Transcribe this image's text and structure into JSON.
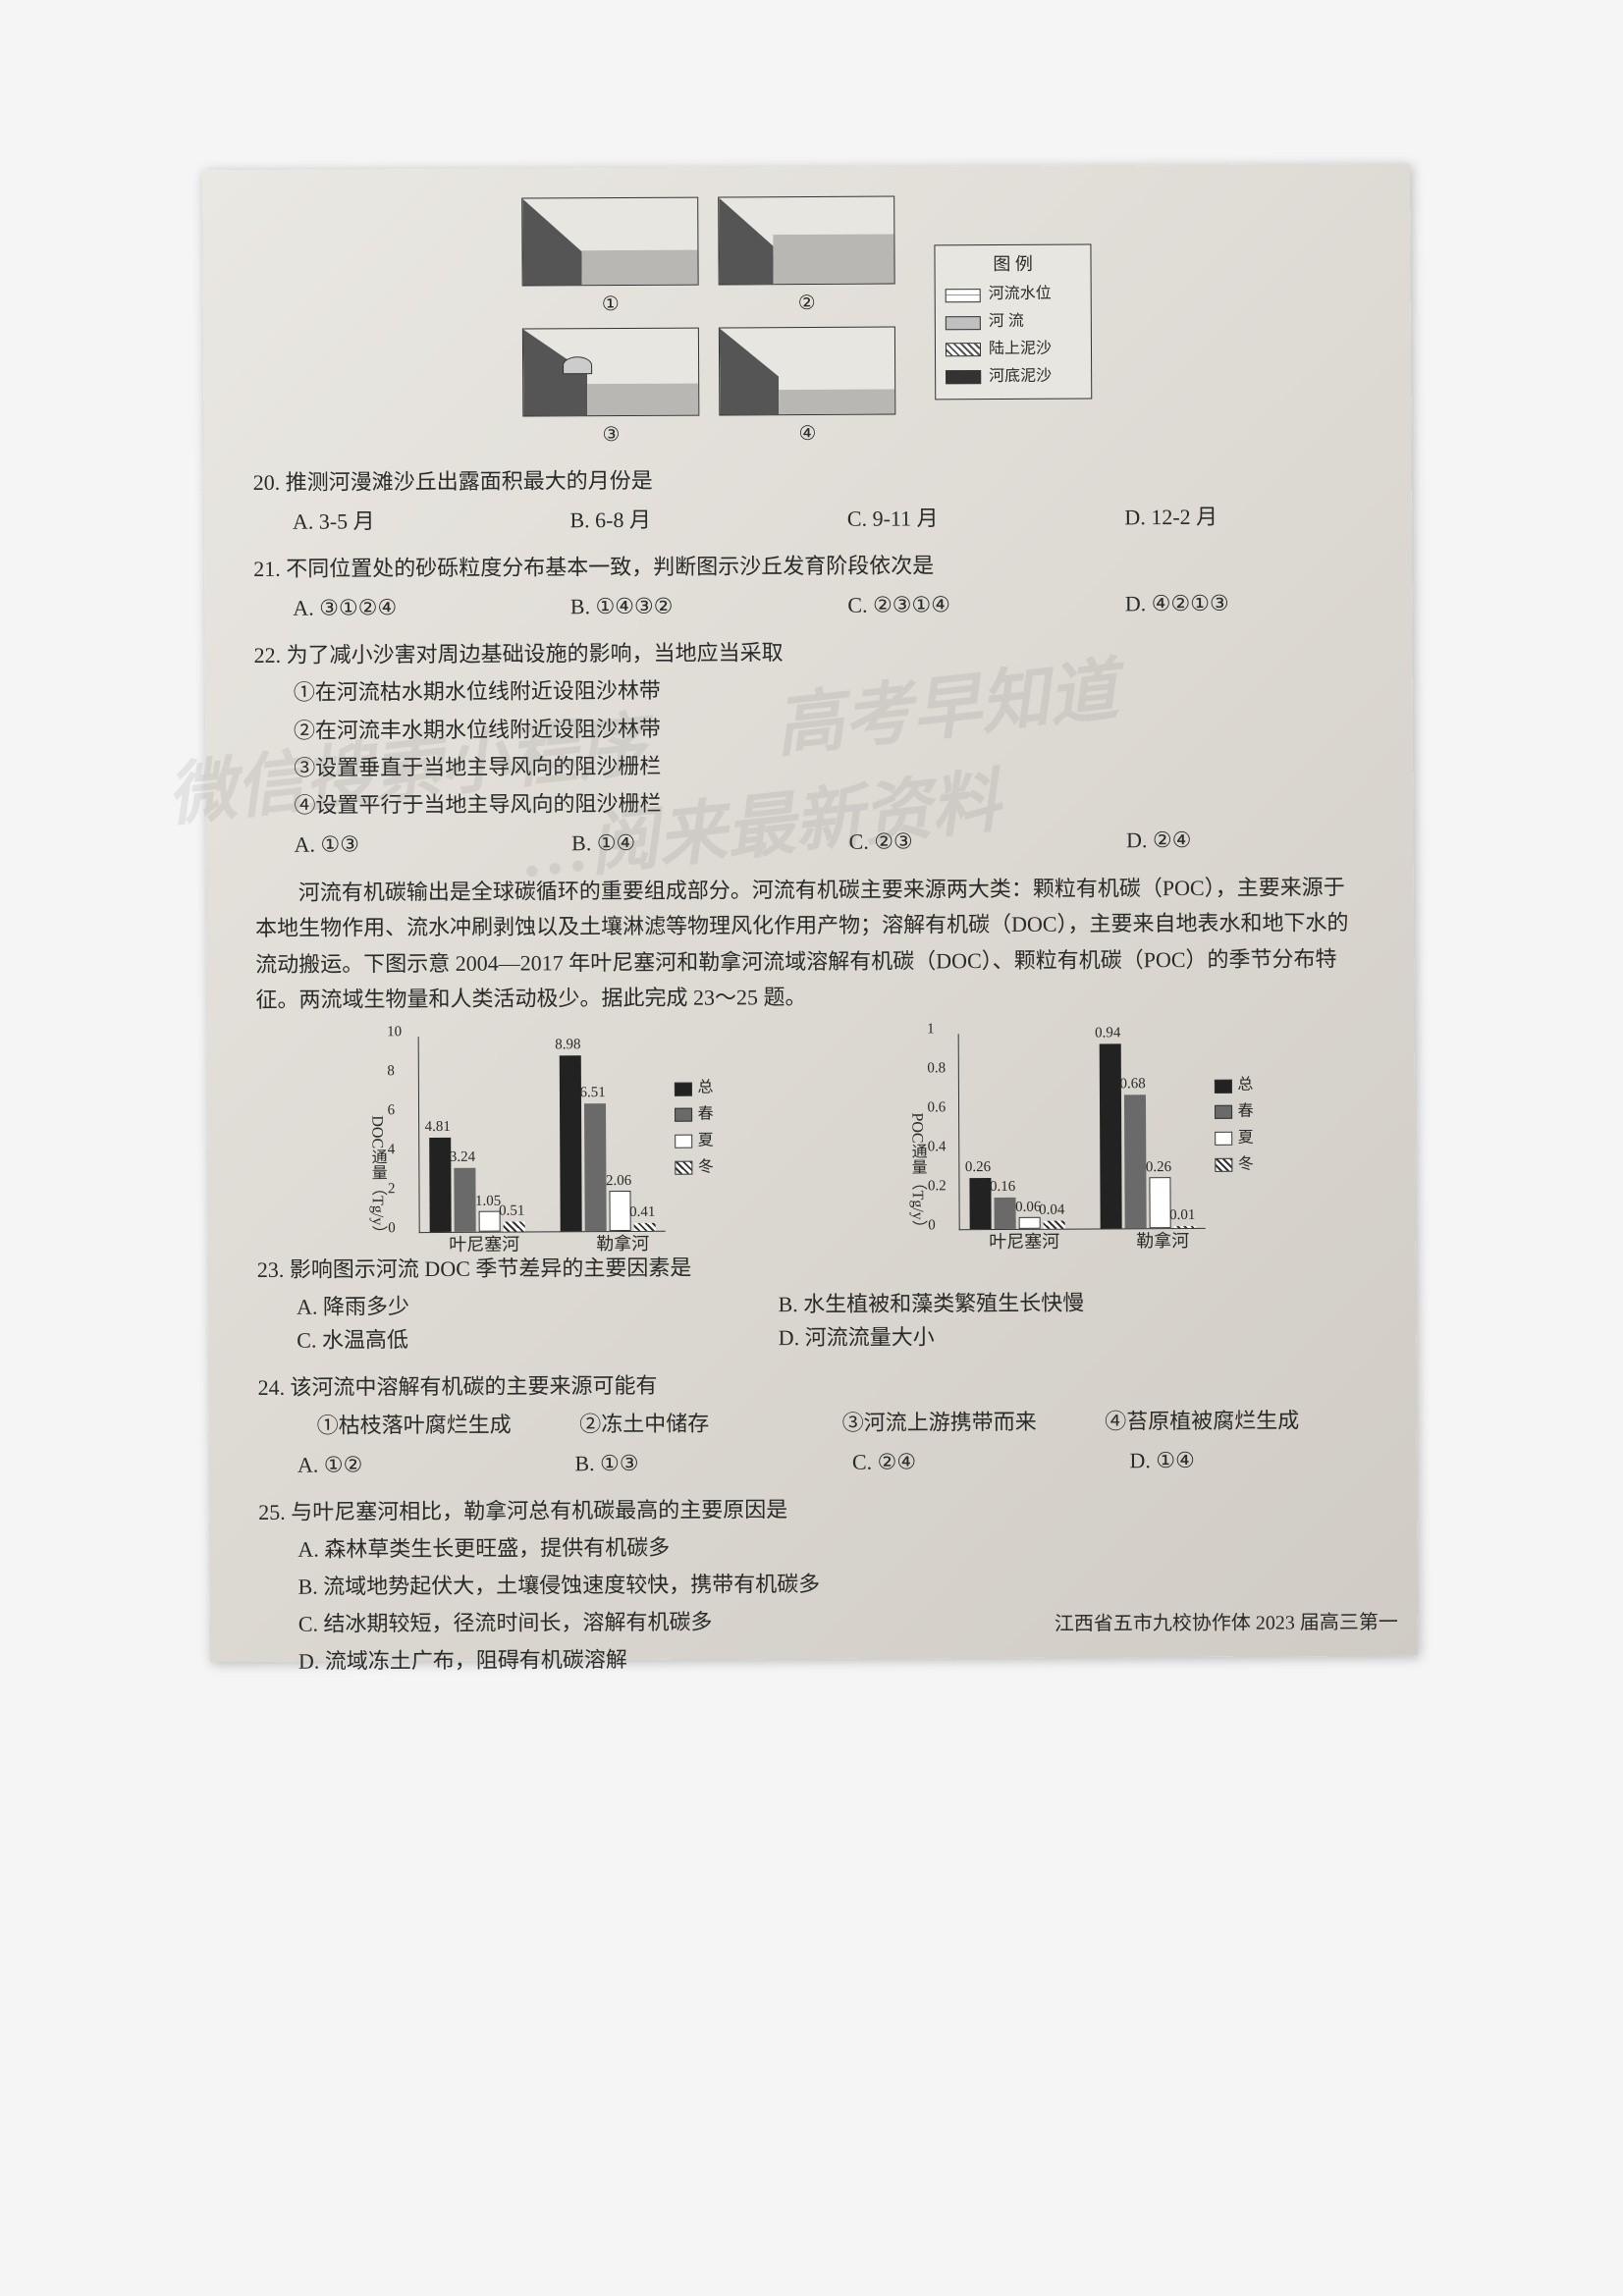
{
  "diagrams": {
    "labels": [
      "①",
      "②",
      "③",
      "④"
    ],
    "legend_title": "图  例",
    "legend_items": [
      {
        "label": "河流水位",
        "swatch_bg": "#fafafa",
        "swatch_pattern": "linear-gradient(180deg,#fff 40%,#333 41%,#333 43%,#fff 44%)"
      },
      {
        "label": "河  流",
        "swatch_bg": "#c0c0c0"
      },
      {
        "label": "陆上泥沙",
        "swatch_bg": "repeating-linear-gradient(45deg,#fff,#fff 3px,#555 3px,#555 5px)"
      },
      {
        "label": "河底泥沙",
        "swatch_bg": "#333"
      }
    ]
  },
  "q20": {
    "stem": "20. 推测河漫滩沙丘出露面积最大的月份是",
    "opts": {
      "A": "A. 3-5 月",
      "B": "B. 6-8 月",
      "C": "C. 9-11 月",
      "D": "D. 12-2 月"
    }
  },
  "q21": {
    "stem": "21. 不同位置处的砂砾粒度分布基本一致，判断图示沙丘发育阶段依次是",
    "opts": {
      "A": "A. ③①②④",
      "B": "B. ①④③②",
      "C": "C. ②③①④",
      "D": "D. ④②①③"
    }
  },
  "q22": {
    "stem": "22. 为了减小沙害对周边基础设施的影响，当地应当采取",
    "subs": [
      "①在河流枯水期水位线附近设阻沙林带",
      "②在河流丰水期水位线附近设阻沙林带",
      "③设置垂直于当地主导风向的阻沙栅栏",
      "④设置平行于当地主导风向的阻沙栅栏"
    ],
    "opts": {
      "A": "A. ①③",
      "B": "B. ①④",
      "C": "C. ②③",
      "D": "D. ②④"
    }
  },
  "passage": "河流有机碳输出是全球碳循环的重要组成部分。河流有机碳主要来源两大类：颗粒有机碳（POC），主要来源于本地生物作用、流水冲刷剥蚀以及土壤淋滤等物理风化作用产物；溶解有机碳（DOC），主要来自地表水和地下水的流动搬运。下图示意 2004—2017 年叶尼塞河和勒拿河流域溶解有机碳（DOC）、颗粒有机碳（POC）的季节分布特征。两流域生物量和人类活动极少。据此完成 23～25 题。",
  "chart1": {
    "ymax": 10,
    "y_label": "DOC通量（Tg/y）",
    "y_ticks": [
      0,
      2,
      4,
      6,
      8,
      10
    ],
    "groups": [
      {
        "name": "叶尼塞河",
        "bars": [
          {
            "v": 4.81,
            "fill": "#222",
            "label": "4.81"
          },
          {
            "v": 3.24,
            "fill": "#6a6a6a",
            "label": "3.24"
          },
          {
            "v": 1.05,
            "fill": "#fff",
            "border": "1px solid #333",
            "label": "1.05"
          },
          {
            "v": 0.51,
            "fill": "repeating-linear-gradient(45deg,#fff,#fff 3px,#333 3px,#333 5px)",
            "label": "0.51"
          }
        ]
      },
      {
        "name": "勒拿河",
        "bars": [
          {
            "v": 8.98,
            "fill": "#222",
            "label": "8.98"
          },
          {
            "v": 6.51,
            "fill": "#6a6a6a",
            "label": "6.51"
          },
          {
            "v": 2.06,
            "fill": "#fff",
            "border": "1px solid #333",
            "label": "2.06"
          },
          {
            "v": 0.41,
            "fill": "repeating-linear-gradient(45deg,#fff,#fff 3px,#333 3px,#333 5px)",
            "label": "0.41"
          }
        ]
      }
    ],
    "legend": [
      {
        "label": "总",
        "fill": "#222"
      },
      {
        "label": "春",
        "fill": "#6a6a6a"
      },
      {
        "label": "夏",
        "fill": "#fff",
        "border": "1px solid #333"
      },
      {
        "label": "冬",
        "fill": "repeating-linear-gradient(45deg,#fff,#fff 3px,#333 3px,#333 5px)"
      }
    ]
  },
  "chart2": {
    "ymax": 1.0,
    "y_label": "POC通量（Tg/y）",
    "y_ticks": [
      0,
      0.2,
      0.4,
      0.6,
      0.8,
      1.0
    ],
    "groups": [
      {
        "name": "叶尼塞河",
        "bars": [
          {
            "v": 0.26,
            "fill": "#222",
            "label": "0.26"
          },
          {
            "v": 0.16,
            "fill": "#6a6a6a",
            "label": "0.16"
          },
          {
            "v": 0.06,
            "fill": "#fff",
            "border": "1px solid #333",
            "label": "0.06"
          },
          {
            "v": 0.04,
            "fill": "repeating-linear-gradient(45deg,#fff,#fff 3px,#333 3px,#333 5px)",
            "label": "0.04"
          }
        ]
      },
      {
        "name": "勒拿河",
        "bars": [
          {
            "v": 0.94,
            "fill": "#222",
            "label": "0.94"
          },
          {
            "v": 0.68,
            "fill": "#6a6a6a",
            "label": "0.68"
          },
          {
            "v": 0.26,
            "fill": "#fff",
            "border": "1px solid #333",
            "label": "0.26"
          },
          {
            "v": 0.01,
            "fill": "repeating-linear-gradient(45deg,#fff,#fff 3px,#333 3px,#333 5px)",
            "label": "0.01"
          }
        ]
      }
    ],
    "legend": [
      {
        "label": "总",
        "fill": "#222"
      },
      {
        "label": "春",
        "fill": "#6a6a6a"
      },
      {
        "label": "夏",
        "fill": "#fff",
        "border": "1px solid #333"
      },
      {
        "label": "冬",
        "fill": "repeating-linear-gradient(45deg,#fff,#fff 3px,#333 3px,#333 5px)"
      }
    ]
  },
  "q23": {
    "stem": "23. 影响图示河流 DOC 季节差异的主要因素是",
    "opts": {
      "A": "A. 降雨多少",
      "B": "B. 水生植被和藻类繁殖生长快慢",
      "C": "C. 水温高低",
      "D": "D. 河流流量大小"
    }
  },
  "q24": {
    "stem": "24. 该河流中溶解有机碳的主要来源可能有",
    "subs_inline": [
      "①枯枝落叶腐烂生成",
      "②冻土中储存",
      "③河流上游携带而来",
      "④苔原植被腐烂生成"
    ],
    "opts": {
      "A": "A. ①②",
      "B": "B. ①③",
      "C": "C. ②④",
      "D": "D. ①④"
    }
  },
  "q25": {
    "stem": "25. 与叶尼塞河相比，勒拿河总有机碳最高的主要原因是",
    "subs": [
      "A. 森林草类生长更旺盛，提供有机碳多",
      "B. 流域地势起伏大，土壤侵蚀速度较快，携带有机碳多",
      "C. 结冰期较短，径流时间长，溶解有机碳多",
      "D. 流域冻土广布，阻碍有机碳溶解"
    ]
  },
  "footer": "江西省五市九校协作体 2023 届高三第一",
  "watermarks": {
    "w1": "微信搜索小程序",
    "w2": "高考早知道",
    "w3": "…阅来最新资料"
  }
}
